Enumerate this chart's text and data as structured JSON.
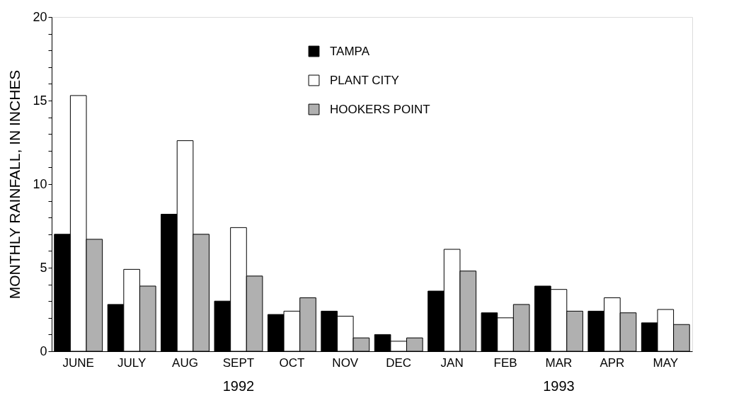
{
  "chart_data": {
    "type": "bar",
    "ylabel": "MONTHLY RAINFALL, IN INCHES",
    "categories": [
      "JUNE",
      "JULY",
      "AUG",
      "SEPT",
      "OCT",
      "NOV",
      "DEC",
      "JAN",
      "FEB",
      "MAR",
      "APR",
      "MAY"
    ],
    "series": [
      {
        "name": "TAMPA",
        "color": "#000000",
        "values": [
          7.0,
          2.8,
          8.2,
          3.0,
          2.2,
          2.4,
          1.0,
          3.6,
          2.3,
          3.9,
          2.4,
          1.7
        ]
      },
      {
        "name": "PLANT CITY",
        "color": "#ffffff",
        "values": [
          15.3,
          4.9,
          12.6,
          7.4,
          2.4,
          2.1,
          0.6,
          6.1,
          2.0,
          3.7,
          3.2,
          2.5
        ]
      },
      {
        "name": "HOOKERS POINT",
        "color": "#b0b0b0",
        "values": [
          6.7,
          3.9,
          7.0,
          4.5,
          3.2,
          0.8,
          0.8,
          4.8,
          2.8,
          2.4,
          2.3,
          1.6
        ]
      }
    ],
    "ylim": [
      0,
      20
    ],
    "yticks": [
      0,
      {
        "value": 1,
        "label": null
      },
      {
        "value": 2,
        "label": null
      },
      {
        "value": 3,
        "label": null
      },
      {
        "value": 4,
        "label": null
      },
      5,
      {
        "value": 6,
        "label": null
      },
      {
        "value": 7,
        "label": null
      },
      {
        "value": 8,
        "label": null
      },
      {
        "value": 9,
        "label": null
      },
      10,
      {
        "value": 11,
        "label": null
      },
      {
        "value": 12,
        "label": null
      },
      {
        "value": 13,
        "label": null
      },
      {
        "value": 14,
        "label": null
      },
      15,
      {
        "value": 16,
        "label": null
      },
      {
        "value": 17,
        "label": null
      },
      {
        "value": 18,
        "label": null
      },
      {
        "value": 19,
        "label": null
      },
      20
    ],
    "annotations": [
      "1992",
      "1993"
    ],
    "legend": "top",
    "grid": false
  }
}
